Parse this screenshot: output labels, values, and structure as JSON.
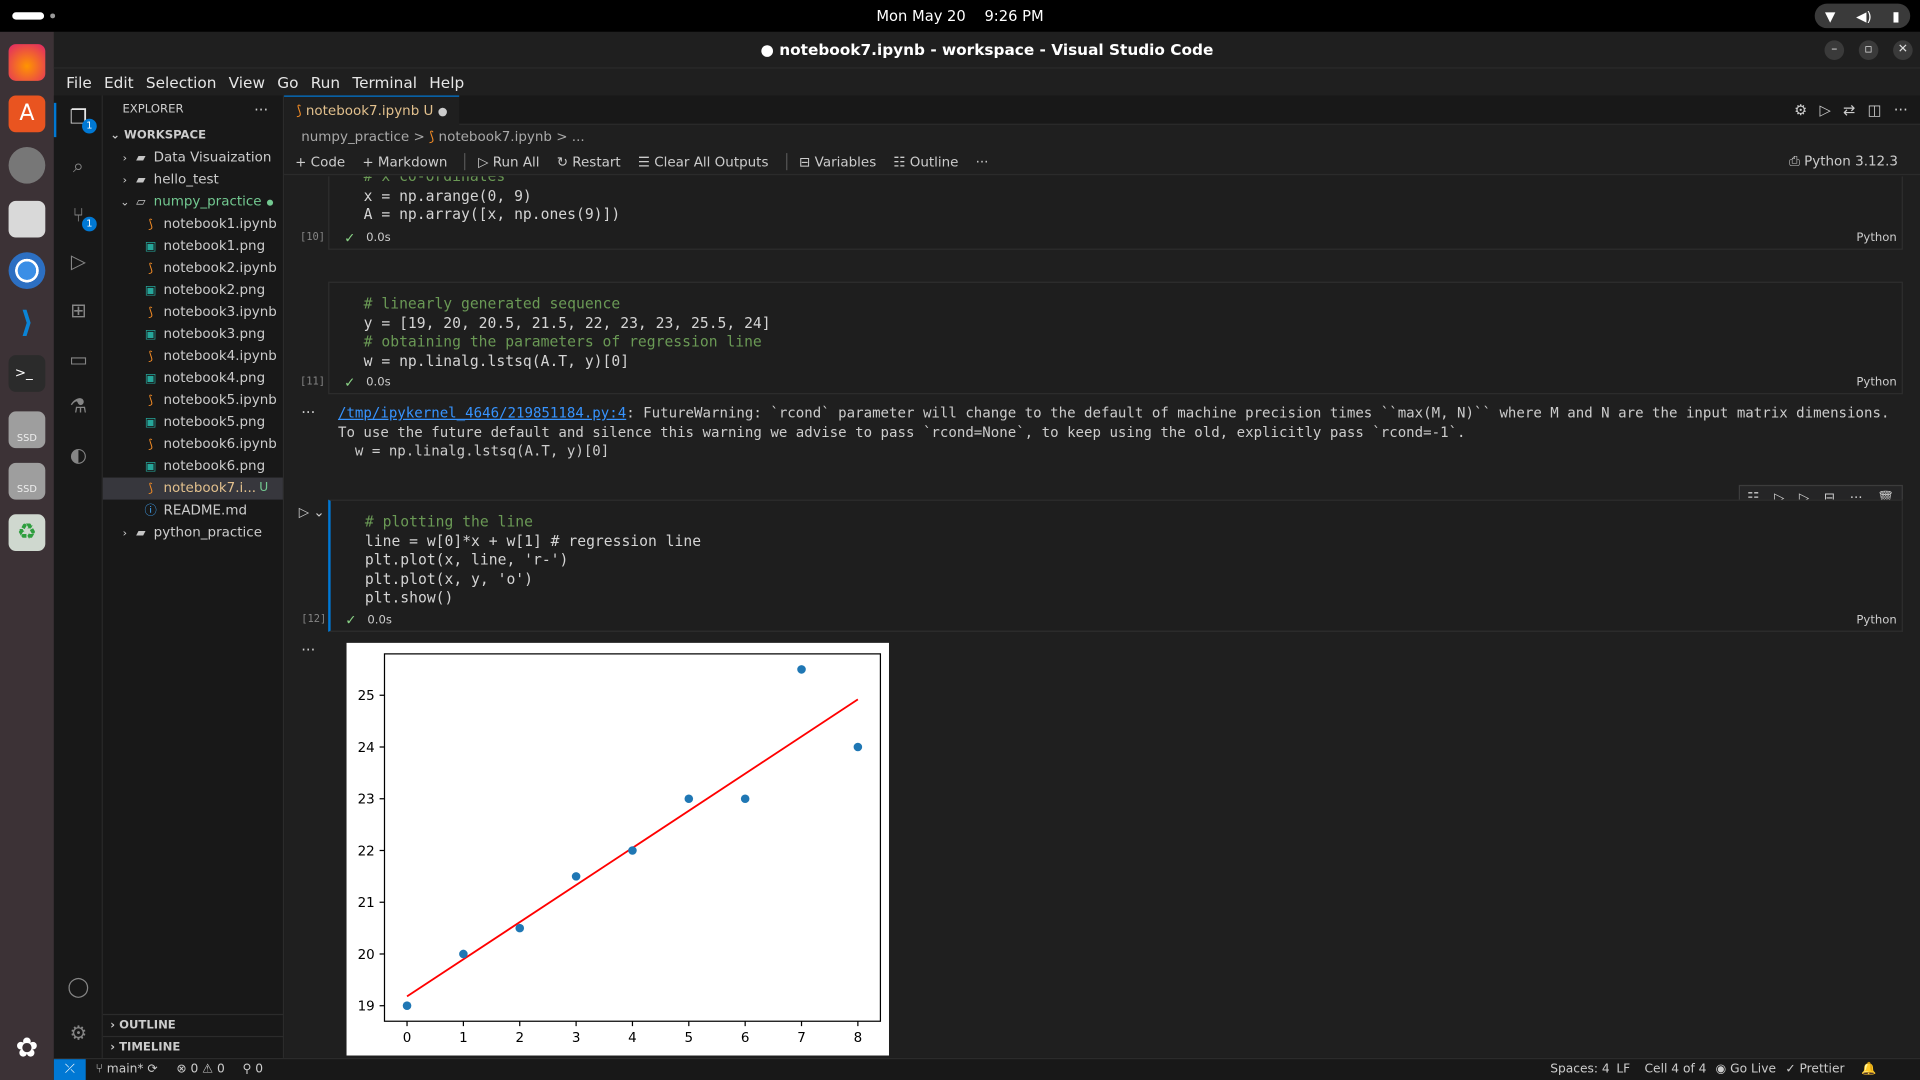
{
  "system": {
    "clock": "Mon May 20    9:26 PM",
    "tray": [
      "wifi-icon",
      "volume-icon",
      "battery-icon"
    ]
  },
  "window": {
    "title": "● notebook7.ipynb - workspace - Visual Studio Code"
  },
  "menu": [
    "File",
    "Edit",
    "Selection",
    "View",
    "Go",
    "Run",
    "Terminal",
    "Help"
  ],
  "explorer": {
    "header": "EXPLORER",
    "workspace": "WORKSPACE",
    "items": [
      {
        "label": "Data Visuaization",
        "type": "folder",
        "depth": 0,
        "expanded": false
      },
      {
        "label": "hello_test",
        "type": "folder",
        "depth": 0,
        "expanded": false
      },
      {
        "label": "numpy_practice",
        "type": "folder",
        "depth": 0,
        "expanded": true,
        "modified": true
      },
      {
        "label": "notebook1.ipynb",
        "type": "ipynb",
        "depth": 1
      },
      {
        "label": "notebook1.png",
        "type": "png",
        "depth": 1
      },
      {
        "label": "notebook2.ipynb",
        "type": "ipynb",
        "depth": 1
      },
      {
        "label": "notebook2.png",
        "type": "png",
        "depth": 1
      },
      {
        "label": "notebook3.ipynb",
        "type": "ipynb",
        "depth": 1
      },
      {
        "label": "notebook3.png",
        "type": "png",
        "depth": 1
      },
      {
        "label": "notebook4.ipynb",
        "type": "ipynb",
        "depth": 1
      },
      {
        "label": "notebook4.png",
        "type": "png",
        "depth": 1
      },
      {
        "label": "notebook5.ipynb",
        "type": "ipynb",
        "depth": 1
      },
      {
        "label": "notebook5.png",
        "type": "png",
        "depth": 1
      },
      {
        "label": "notebook6.ipynb",
        "type": "ipynb",
        "depth": 1
      },
      {
        "label": "notebook6.png",
        "type": "png",
        "depth": 1
      },
      {
        "label": "notebook7.i...",
        "type": "ipynb",
        "depth": 1,
        "selected": true,
        "git": "U"
      },
      {
        "label": "README.md",
        "type": "md",
        "depth": 1
      },
      {
        "label": "python_practice",
        "type": "folder",
        "depth": 0,
        "expanded": false
      }
    ],
    "outline": "OUTLINE",
    "timeline": "TIMELINE"
  },
  "editor": {
    "tab": {
      "label": "notebook7.ipynb",
      "git": "U"
    },
    "breadcrumb": [
      "numpy_practice",
      ">",
      "notebook7.ipynb",
      ">",
      "..."
    ],
    "toolbar": [
      "Code",
      "Markdown",
      "Run All",
      "Restart",
      "Clear All Outputs",
      "Variables",
      "Outline"
    ],
    "kernel": "Python 3.12.3"
  },
  "cells": [
    {
      "exec": "[10]",
      "duration": "0.0s",
      "lang": "Python",
      "lines": [
        "# x co-ordinates",
        "x = np.arange(0, 9)",
        "A = np.array([x, np.ones(9)])"
      ]
    },
    {
      "exec": "[11]",
      "duration": "0.0s",
      "lang": "Python",
      "lines": [
        "# linearly generated sequence",
        "y = [19, 20, 20.5, 21.5, 22, 23, 23, 25.5, 24]",
        "# obtaining the parameters of regression line",
        "w = np.linalg.lstsq(A.T, y)[0]"
      ],
      "output": {
        "link": "/tmp/ipykernel_4646/219851184.py:4",
        "text1": ": FutureWarning: `rcond` parameter will change to the default of machine precision times ``max(M, N)`` where M and N are the input matrix dimensions.",
        "text2": "To use the future default and silence this warning we advise to pass `rcond=None`, to keep using the old, explicitly pass `rcond=-1`.",
        "text3": "  w = np.linalg.lstsq(A.T, y)[0]"
      }
    },
    {
      "exec": "[12]",
      "duration": "0.0s",
      "lang": "Python",
      "lines": [
        "# plotting the line",
        "line = w[0]*x + w[1] # regression line",
        "plt.plot(x, line, 'r-')",
        "plt.plot(x, y, 'o')",
        "plt.show()"
      ]
    }
  ],
  "chart_data": {
    "type": "scatter",
    "x": [
      0,
      1,
      2,
      3,
      4,
      5,
      6,
      7,
      8
    ],
    "y": [
      19,
      20,
      20.5,
      21.5,
      22,
      23,
      23,
      25.5,
      24
    ],
    "regression_line": {
      "x": [
        0,
        8
      ],
      "y": [
        19.18,
        24.92
      ],
      "color": "#ff0000"
    },
    "point_color": "#1f77b4",
    "xlim": [
      -0.4,
      8.4
    ],
    "ylim": [
      18.7,
      25.8
    ],
    "xticks": [
      "0",
      "1",
      "2",
      "3",
      "4",
      "5",
      "6",
      "7",
      "8"
    ],
    "yticks": [
      "19",
      "20",
      "21",
      "22",
      "23",
      "24",
      "25"
    ],
    "grid": false
  },
  "status": {
    "branch": "main*",
    "problems": "⊗ 0 ⚠ 0",
    "ports": "⚲ 0",
    "spaces": "Spaces: 4",
    "eol": "LF",
    "cell": "Cell 4 of 4",
    "golive": "Go Live",
    "prettier": "Prettier"
  }
}
